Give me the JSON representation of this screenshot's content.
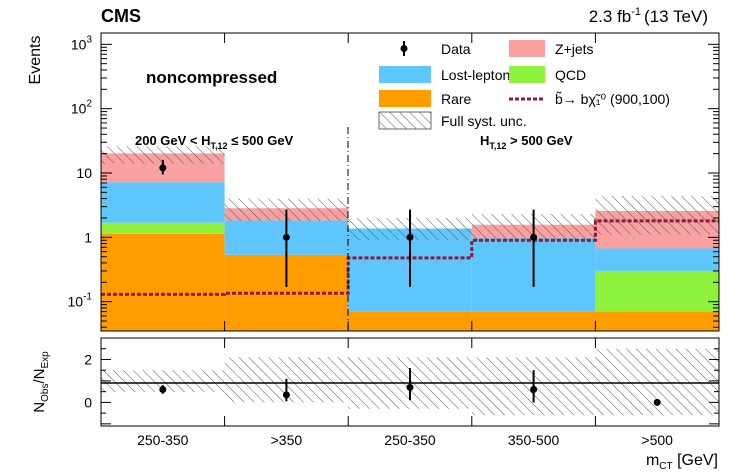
{
  "header": {
    "experiment": "CMS",
    "lumi_value": "2.3 fb",
    "lumi_exp": "-1",
    "lumi_energy": "(13 TeV)"
  },
  "category_label": "noncompressed",
  "regions": [
    {
      "main": "200 GeV < H",
      "sub": "T,12",
      "rest": " ≤ 500 GeV"
    },
    {
      "main": "H",
      "sub": "T,12",
      "rest": " > 500 GeV"
    }
  ],
  "legend": [
    {
      "label": "Data",
      "kind": "marker",
      "color": "#000000"
    },
    {
      "label": "Z+jets",
      "kind": "fill",
      "color": "#f9a1a1"
    },
    {
      "label": "Lost-lepton",
      "kind": "fill",
      "color": "#5ec6fa"
    },
    {
      "label": "QCD",
      "kind": "fill",
      "color": "#8ef23c"
    },
    {
      "label": "Rare",
      "kind": "fill",
      "color": "#ff9d00"
    },
    {
      "label": "b̃→ bχ̃₁⁰ (900,100)",
      "kind": "dashed",
      "color": "#8c1a3c"
    },
    {
      "label": "Full syst. unc.",
      "kind": "hatch",
      "color": "#444444"
    }
  ],
  "chart_data": [
    {
      "type": "bar",
      "stacked": true,
      "ylog": true,
      "ylabel": "Events",
      "ylim": [
        0.035,
        1500
      ],
      "yticks": [
        {
          "value": 0.1,
          "base": "10",
          "exp": "-1"
        },
        {
          "value": 1,
          "base": "1",
          "exp": ""
        },
        {
          "value": 10,
          "base": "10",
          "exp": ""
        },
        {
          "value": 100,
          "base": "10",
          "exp": "2"
        },
        {
          "value": 1000,
          "base": "10",
          "exp": "3"
        }
      ],
      "categories": [
        "250-350",
        ">350",
        "250-350",
        "350-500",
        ">500"
      ],
      "series": [
        {
          "name": "Rare",
          "color": "#ff9d00",
          "values": [
            1.1,
            0.5,
            0.036,
            0.036,
            0.036
          ]
        },
        {
          "name": "QCD",
          "color": "#8ef23c",
          "values": [
            0.55,
            0,
            0,
            0,
            0.23
          ]
        },
        {
          "name": "Lost-lepton",
          "color": "#5ec6fa",
          "values": [
            5.5,
            1.3,
            1.3,
            0.9,
            0.37
          ]
        },
        {
          "name": "Z+jets",
          "color": "#f9a1a1",
          "values": [
            13,
            1.0,
            0,
            0.6,
            1.9
          ]
        }
      ],
      "syst_band": {
        "low": [
          14,
          1.8,
          0.9,
          0.9,
          1.1
        ],
        "high": [
          26,
          4.0,
          2.0,
          2.3,
          4.4
        ]
      },
      "data": {
        "y": [
          12,
          1,
          1,
          1,
          null
        ],
        "err_low": [
          2.5,
          0.83,
          0.83,
          0.83,
          null
        ],
        "err_high": [
          4,
          1.7,
          1.7,
          1.7,
          null
        ]
      },
      "signal": {
        "name": "b̃→ bχ̃₁⁰ (900,100)",
        "color": "#8c1a3c",
        "values": [
          0.13,
          0.135,
          0.48,
          0.9,
          1.8
        ]
      }
    },
    {
      "type": "scatter",
      "ylabel_main": "N",
      "ylabel_num": "Obs",
      "ylabel_den": "Exp",
      "ylim": [
        -1.1,
        3.0
      ],
      "yticks": [
        0,
        2
      ],
      "reference_line": 1,
      "xlabel_main": "m",
      "xlabel_sub": "CT",
      "xlabel_unit": " [GeV]",
      "categories": [
        "250-350",
        ">350",
        "250-350",
        "350-500",
        ">500"
      ],
      "ratio": [
        0.6,
        0.35,
        0.7,
        0.6,
        0
      ],
      "err_low": [
        0.2,
        0.3,
        0.6,
        0.6,
        null
      ],
      "err_high": [
        0.2,
        0.75,
        0.9,
        0.9,
        null
      ],
      "band": {
        "low": [
          0.48,
          0.0,
          -0.3,
          -0.6,
          -0.6
        ],
        "high": [
          1.5,
          2.1,
          2.1,
          2.1,
          2.5
        ]
      }
    }
  ]
}
